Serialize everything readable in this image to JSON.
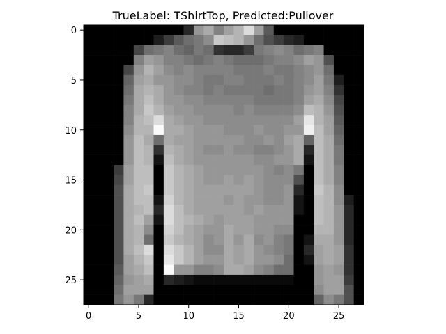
{
  "chart_data": {
    "type": "heatmap",
    "title": "TrueLabel: TShirtTop, Predicted:Pullover",
    "colormap": "gray",
    "vmin": 0,
    "vmax": 255,
    "grid": false,
    "xlim": [
      -0.5,
      27.5
    ],
    "ylim": [
      27.5,
      -0.5
    ],
    "xticks": [
      0,
      5,
      10,
      15,
      20,
      25
    ],
    "yticks": [
      0,
      5,
      10,
      15,
      20,
      25
    ],
    "xtick_labels": [
      "0",
      "5",
      "10",
      "15",
      "20",
      "25"
    ],
    "ytick_labels": [
      "0",
      "5",
      "10",
      "15",
      "20",
      "25"
    ],
    "rows": [
      [
        0,
        0,
        0,
        0,
        0,
        0,
        0,
        0,
        0,
        0,
        40,
        150,
        170,
        130,
        160,
        180,
        220,
        160,
        90,
        0,
        0,
        0,
        0,
        0,
        0,
        0,
        0,
        0
      ],
      [
        0,
        0,
        0,
        0,
        0,
        0,
        0,
        30,
        60,
        90,
        110,
        120,
        140,
        200,
        190,
        180,
        150,
        110,
        80,
        60,
        40,
        30,
        0,
        0,
        0,
        0,
        0,
        0
      ],
      [
        0,
        0,
        0,
        0,
        0,
        70,
        110,
        120,
        130,
        110,
        100,
        120,
        110,
        50,
        40,
        40,
        60,
        120,
        130,
        140,
        130,
        110,
        120,
        130,
        0,
        0,
        0,
        0
      ],
      [
        0,
        0,
        0,
        0,
        0,
        130,
        160,
        150,
        130,
        130,
        120,
        110,
        120,
        130,
        120,
        110,
        110,
        110,
        120,
        130,
        130,
        140,
        160,
        150,
        80,
        0,
        0,
        0
      ],
      [
        0,
        0,
        0,
        0,
        70,
        150,
        180,
        160,
        140,
        130,
        140,
        130,
        130,
        130,
        130,
        120,
        120,
        120,
        130,
        120,
        120,
        130,
        140,
        150,
        110,
        0,
        0,
        0
      ],
      [
        0,
        0,
        0,
        0,
        100,
        160,
        170,
        150,
        150,
        140,
        140,
        130,
        120,
        120,
        130,
        130,
        120,
        120,
        120,
        130,
        120,
        130,
        140,
        160,
        120,
        30,
        0,
        0
      ],
      [
        0,
        0,
        0,
        0,
        110,
        170,
        180,
        170,
        150,
        140,
        130,
        130,
        120,
        130,
        120,
        120,
        120,
        120,
        110,
        120,
        120,
        130,
        150,
        160,
        130,
        50,
        0,
        0
      ],
      [
        0,
        0,
        0,
        0,
        120,
        170,
        190,
        170,
        150,
        150,
        140,
        140,
        130,
        130,
        130,
        130,
        130,
        120,
        120,
        120,
        120,
        130,
        160,
        170,
        140,
        70,
        0,
        0
      ],
      [
        0,
        0,
        0,
        0,
        130,
        170,
        200,
        180,
        160,
        150,
        150,
        140,
        140,
        140,
        140,
        130,
        140,
        130,
        130,
        130,
        130,
        140,
        190,
        180,
        150,
        80,
        0,
        0
      ],
      [
        0,
        0,
        0,
        0,
        130,
        180,
        190,
        220,
        170,
        160,
        150,
        150,
        140,
        140,
        140,
        140,
        140,
        140,
        140,
        140,
        140,
        160,
        230,
        180,
        160,
        90,
        0,
        0
      ],
      [
        0,
        0,
        0,
        0,
        140,
        180,
        180,
        250,
        170,
        170,
        160,
        150,
        150,
        150,
        140,
        140,
        140,
        150,
        140,
        140,
        150,
        150,
        240,
        190,
        160,
        100,
        0,
        0
      ],
      [
        0,
        0,
        0,
        0,
        150,
        190,
        170,
        110,
        170,
        160,
        160,
        150,
        150,
        150,
        150,
        150,
        140,
        140,
        150,
        140,
        160,
        170,
        100,
        190,
        170,
        110,
        0,
        0
      ],
      [
        0,
        0,
        0,
        0,
        150,
        190,
        180,
        50,
        180,
        170,
        160,
        150,
        140,
        140,
        150,
        140,
        140,
        130,
        130,
        140,
        150,
        170,
        40,
        190,
        170,
        120,
        0,
        0
      ],
      [
        0,
        0,
        0,
        0,
        150,
        190,
        180,
        20,
        190,
        170,
        160,
        150,
        150,
        150,
        150,
        150,
        150,
        140,
        140,
        150,
        150,
        170,
        20,
        190,
        170,
        120,
        0,
        0
      ],
      [
        0,
        0,
        0,
        60,
        160,
        190,
        190,
        0,
        200,
        180,
        170,
        160,
        150,
        150,
        150,
        150,
        150,
        150,
        140,
        130,
        140,
        120,
        0,
        190,
        170,
        130,
        0,
        0
      ],
      [
        0,
        0,
        0,
        70,
        160,
        190,
        190,
        0,
        200,
        180,
        170,
        160,
        150,
        150,
        160,
        150,
        160,
        150,
        140,
        140,
        140,
        80,
        0,
        190,
        170,
        130,
        0,
        0
      ],
      [
        0,
        0,
        0,
        80,
        170,
        190,
        200,
        0,
        200,
        180,
        170,
        160,
        160,
        160,
        160,
        160,
        160,
        150,
        140,
        140,
        150,
        40,
        0,
        200,
        180,
        140,
        0,
        0
      ],
      [
        0,
        0,
        0,
        80,
        170,
        190,
        190,
        20,
        210,
        180,
        170,
        160,
        160,
        160,
        150,
        160,
        150,
        150,
        140,
        140,
        150,
        20,
        0,
        190,
        180,
        140,
        30,
        0
      ],
      [
        0,
        0,
        0,
        80,
        170,
        180,
        190,
        40,
        220,
        190,
        170,
        160,
        160,
        160,
        160,
        160,
        150,
        160,
        150,
        150,
        150,
        20,
        0,
        190,
        180,
        150,
        40,
        0
      ],
      [
        0,
        0,
        0,
        80,
        170,
        190,
        160,
        20,
        220,
        190,
        180,
        170,
        160,
        150,
        160,
        160,
        160,
        150,
        150,
        150,
        150,
        0,
        0,
        190,
        180,
        150,
        40,
        0
      ],
      [
        0,
        0,
        0,
        80,
        170,
        180,
        140,
        0,
        210,
        190,
        170,
        160,
        150,
        150,
        170,
        160,
        160,
        150,
        150,
        140,
        140,
        0,
        0,
        180,
        180,
        150,
        40,
        0
      ],
      [
        0,
        0,
        0,
        80,
        170,
        180,
        110,
        0,
        200,
        180,
        170,
        160,
        140,
        150,
        170,
        150,
        170,
        140,
        150,
        130,
        120,
        0,
        20,
        170,
        170,
        150,
        40,
        0
      ],
      [
        0,
        0,
        0,
        80,
        170,
        190,
        220,
        0,
        220,
        200,
        180,
        160,
        140,
        140,
        170,
        160,
        170,
        150,
        140,
        130,
        120,
        0,
        40,
        160,
        170,
        160,
        50,
        0
      ],
      [
        0,
        0,
        0,
        80,
        160,
        180,
        200,
        0,
        230,
        200,
        180,
        160,
        150,
        150,
        170,
        160,
        170,
        150,
        150,
        140,
        110,
        0,
        20,
        160,
        170,
        160,
        50,
        0
      ],
      [
        0,
        0,
        0,
        90,
        160,
        170,
        190,
        0,
        250,
        150,
        150,
        130,
        130,
        140,
        170,
        170,
        160,
        140,
        130,
        110,
        110,
        0,
        0,
        150,
        160,
        150,
        50,
        0
      ],
      [
        0,
        0,
        0,
        100,
        150,
        160,
        170,
        0,
        40,
        30,
        20,
        10,
        10,
        10,
        10,
        10,
        10,
        10,
        10,
        10,
        10,
        0,
        0,
        150,
        160,
        160,
        60,
        0
      ],
      [
        0,
        0,
        0,
        110,
        160,
        160,
        160,
        0,
        0,
        0,
        0,
        0,
        0,
        0,
        0,
        0,
        0,
        0,
        0,
        0,
        0,
        0,
        0,
        140,
        160,
        160,
        80,
        0
      ],
      [
        0,
        0,
        0,
        120,
        150,
        120,
        40,
        0,
        0,
        0,
        0,
        0,
        0,
        0,
        0,
        0,
        0,
        0,
        0,
        0,
        0,
        0,
        0,
        100,
        140,
        120,
        80,
        0
      ]
    ]
  }
}
